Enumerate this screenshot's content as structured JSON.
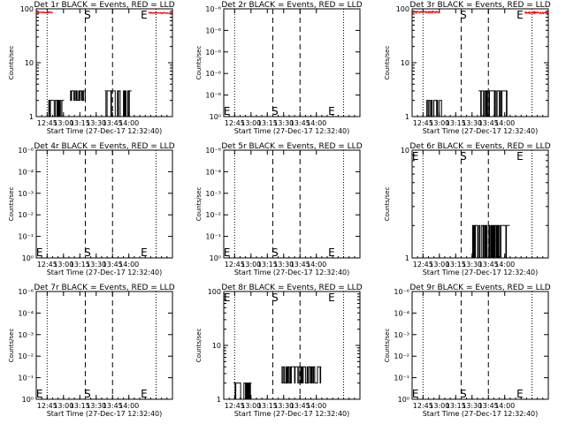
{
  "chart_data": {
    "type": "line",
    "x_ticks": [
      "12:45",
      "13:00",
      "13:15",
      "13:30",
      "13:45",
      "14:00"
    ],
    "xlabel": "Start Time (27-Dec-17 12:32:40)",
    "ylabel": "Counts/sec",
    "xrange_minutes": [
      -15,
      110
    ],
    "panels": [
      {
        "title": "Det 1r BLACK = Events, RED = LLD",
        "scale": "log",
        "ylim": [
          1,
          100
        ],
        "yticks": [
          {
            "v": 1,
            "t": "1"
          },
          {
            "v": 10,
            "t": "10"
          },
          {
            "v": 100,
            "t": "100"
          }
        ],
        "ref_lines": {
          "dotted": [
            -5,
            95
          ],
          "dashed": [
            30,
            55
          ]
        },
        "markers": [
          {
            "label": "S",
            "x": 32,
            "y": 100
          },
          {
            "label": "E",
            "x": 84,
            "y": 100
          }
        ],
        "lld": {
          "color": "#ff0000",
          "ranges": [
            [
              -15,
              0,
              84,
              88
            ],
            [
              88,
              110,
              82,
              86
            ]
          ]
        },
        "events": {
          "color": "#000000",
          "ranges": [
            [
              -4,
              10,
              1,
              2
            ],
            [
              16,
              30,
              2,
              3
            ],
            [
              48,
              72,
              1,
              3
            ]
          ]
        }
      },
      {
        "title": "Det 2r BLACK = Events, RED = LLD",
        "scale": "log",
        "ylim": [
          1,
          1.000001
        ],
        "yticks": [
          {
            "v": 1,
            "t": "10⁰"
          },
          {
            "v": 1.0000002,
            "t": "10⁻⁶"
          },
          {
            "v": 1.0000004,
            "t": "10⁻⁶"
          },
          {
            "v": 1.0000006,
            "t": "10⁻⁶"
          },
          {
            "v": 1.0000008,
            "t": "10⁻⁶"
          },
          {
            "v": 1.000001,
            "t": "10⁻⁶"
          }
        ],
        "ref_lines": {
          "dotted": [
            -5,
            95
          ],
          "dashed": [
            30,
            55
          ]
        },
        "markers": [
          {
            "label": "E",
            "x": -12,
            "y": 1.0000001
          },
          {
            "label": "S",
            "x": 32,
            "y": 1.0000001
          },
          {
            "label": "E",
            "x": 84,
            "y": 1.0000001
          }
        ],
        "lld": null,
        "events": null
      },
      {
        "title": "Det 3r BLACK = Events, RED = LLD",
        "scale": "log",
        "ylim": [
          1,
          100
        ],
        "yticks": [
          {
            "v": 1,
            "t": "1"
          },
          {
            "v": 10,
            "t": "10"
          },
          {
            "v": 100,
            "t": "100"
          }
        ],
        "ref_lines": {
          "dotted": [
            -5,
            95
          ],
          "dashed": [
            30,
            55
          ]
        },
        "markers": [
          {
            "label": "S",
            "x": 32,
            "y": 100
          },
          {
            "label": "E",
            "x": 84,
            "y": 100
          }
        ],
        "lld": {
          "color": "#ff0000",
          "ranges": [
            [
              -15,
              10,
              84,
              90
            ],
            [
              88,
              110,
              82,
              88
            ]
          ]
        },
        "events": {
          "color": "#000000",
          "ranges": [
            [
              -2,
              12,
              1,
              2
            ],
            [
              46,
              72,
              1,
              3
            ]
          ]
        }
      },
      {
        "title": "Det 4r BLACK = Events, RED = LLD",
        "scale": "log",
        "ylim": [
          1,
          1.000001
        ],
        "yticks": [
          {
            "v": 1,
            "t": "10⁰"
          },
          {
            "v": 1.0000002,
            "t": "10⁻¹"
          },
          {
            "v": 1.0000004,
            "t": "10⁻²"
          },
          {
            "v": 1.0000006,
            "t": "10⁻³"
          },
          {
            "v": 1.0000008,
            "t": "10⁻⁴"
          },
          {
            "v": 1.000001,
            "t": "10⁻⁶"
          }
        ],
        "ref_lines": {
          "dotted": [
            -5,
            95
          ],
          "dashed": [
            30,
            55
          ]
        },
        "markers": [
          {
            "label": "E",
            "x": -12,
            "y": 1.0000001
          },
          {
            "label": "S",
            "x": 32,
            "y": 1.0000001
          },
          {
            "label": "E",
            "x": 84,
            "y": 1.0000001
          }
        ],
        "lld": null,
        "events": null
      },
      {
        "title": "Det 5r BLACK = Events, RED = LLD",
        "scale": "log",
        "ylim": [
          1,
          1.000001
        ],
        "yticks": [
          {
            "v": 1,
            "t": "10⁰"
          },
          {
            "v": 1.0000002,
            "t": "10⁻¹"
          },
          {
            "v": 1.0000004,
            "t": "10⁻²"
          },
          {
            "v": 1.0000006,
            "t": "10⁻³"
          },
          {
            "v": 1.0000008,
            "t": "10⁻⁴"
          },
          {
            "v": 1.000001,
            "t": "10⁻⁶"
          }
        ],
        "ref_lines": {
          "dotted": [
            -5,
            95
          ],
          "dashed": [
            30,
            55
          ]
        },
        "markers": [
          {
            "label": "E",
            "x": -12,
            "y": 1.0000001
          },
          {
            "label": "S",
            "x": 32,
            "y": 1.0000001
          },
          {
            "label": "E",
            "x": 84,
            "y": 1.0000001
          }
        ],
        "lld": null,
        "events": null
      },
      {
        "title": "Det 6r BLACK = Events, RED = LLD",
        "scale": "log",
        "ylim": [
          1,
          10
        ],
        "yticks": [
          {
            "v": 1,
            "t": "1"
          },
          {
            "v": 10,
            "t": "10"
          }
        ],
        "ref_lines": {
          "dotted": [
            -5,
            95
          ],
          "dashed": [
            30,
            55
          ]
        },
        "markers": [
          {
            "label": "E",
            "x": -12,
            "y": 10
          },
          {
            "label": "S",
            "x": 32,
            "y": 10
          },
          {
            "label": "E",
            "x": 84,
            "y": 10
          }
        ],
        "lld": null,
        "events": {
          "color": "#000000",
          "ranges": [
            [
              40,
              74,
              1,
              2
            ]
          ]
        }
      },
      {
        "title": "Det 7r BLACK = Events, RED = LLD",
        "scale": "log",
        "ylim": [
          1,
          1.000001
        ],
        "yticks": [
          {
            "v": 1,
            "t": "10⁰"
          },
          {
            "v": 1.0000002,
            "t": "10⁻¹"
          },
          {
            "v": 1.0000004,
            "t": "10⁻²"
          },
          {
            "v": 1.0000006,
            "t": "10⁻³"
          },
          {
            "v": 1.0000008,
            "t": "10⁻⁴"
          },
          {
            "v": 1.000001,
            "t": "10⁻⁶"
          }
        ],
        "ref_lines": {
          "dotted": [
            -5,
            95
          ],
          "dashed": [
            30,
            55
          ]
        },
        "markers": [
          {
            "label": "E",
            "x": -12,
            "y": 1.0000001
          },
          {
            "label": "S",
            "x": 32,
            "y": 1.0000001
          },
          {
            "label": "E",
            "x": 84,
            "y": 1.0000001
          }
        ],
        "lld": null,
        "events": null
      },
      {
        "title": "Det 8r BLACK = Events, RED = LLD",
        "scale": "log",
        "ylim": [
          1,
          100
        ],
        "yticks": [
          {
            "v": 1,
            "t": "1"
          },
          {
            "v": 10,
            "t": "10"
          },
          {
            "v": 100,
            "t": "100"
          }
        ],
        "ref_lines": {
          "dotted": [
            -5,
            95
          ],
          "dashed": [
            30,
            55
          ]
        },
        "markers": [
          {
            "label": "E",
            "x": -12,
            "y": 100
          },
          {
            "label": "S",
            "x": 32,
            "y": 100
          },
          {
            "label": "E",
            "x": 84,
            "y": 100
          }
        ],
        "lld": null,
        "events": {
          "color": "#000000",
          "ranges": [
            [
              -6,
              10,
              1,
              2
            ],
            [
              38,
              74,
              2,
              4
            ]
          ]
        }
      },
      {
        "title": "Det 9r BLACK = Events, RED = LLD",
        "scale": "log",
        "ylim": [
          1,
          1.000001
        ],
        "yticks": [
          {
            "v": 1,
            "t": "10⁰"
          },
          {
            "v": 1.0000002,
            "t": "10⁻¹"
          },
          {
            "v": 1.0000004,
            "t": "10⁻²"
          },
          {
            "v": 1.0000006,
            "t": "10⁻³"
          },
          {
            "v": 1.0000008,
            "t": "10⁻⁴"
          },
          {
            "v": 1.000001,
            "t": "10⁻⁶"
          }
        ],
        "ref_lines": {
          "dotted": [
            -5,
            95
          ],
          "dashed": [
            30,
            55
          ]
        },
        "markers": [
          {
            "label": "E",
            "x": -12,
            "y": 1.0000001
          },
          {
            "label": "S",
            "x": 32,
            "y": 1.0000001
          },
          {
            "label": "E",
            "x": 84,
            "y": 1.0000001
          }
        ],
        "lld": null,
        "events": null
      }
    ]
  }
}
